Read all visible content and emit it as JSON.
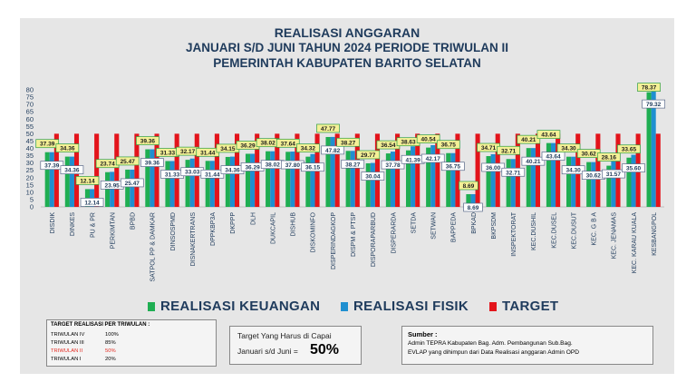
{
  "header": {
    "line1": "REALISASI ANGGARAN",
    "line2": "JANUARI S/D JUNI TAHUN 2024 PERIODE TRIWULAN II",
    "line3": "PEMERINTAH KABUPATEN BARITO SELATAN"
  },
  "legend": {
    "keuangan": "REALISASI KEUANGAN",
    "fisik": "REALISASI FISIK",
    "target": "TARGET"
  },
  "colors": {
    "keuangan": "#1fae52",
    "fisik": "#1f8fd0",
    "target": "#e3141b",
    "label_green_bg": "#f4f096",
    "label_green_border": "#2f9e44",
    "label_blue_bg": "#ffffff",
    "label_blue_border": "#5a6a8a",
    "highlight": "#e32b22"
  },
  "target_table": {
    "title": "TARGET REALISASI PER TRIWULAN :",
    "rows": [
      {
        "label": "TRIWULAN IV",
        "value": "100%"
      },
      {
        "label": "TRIWULAN III",
        "value": "85%"
      },
      {
        "label": "TRIWULAN II",
        "value": "50%"
      },
      {
        "label": "TRIWULAN I",
        "value": "20%"
      }
    ]
  },
  "target_note": {
    "line1": "Target Yang Harus di Capai",
    "line2": "Januari s/d Juni =",
    "value": "50%"
  },
  "source": {
    "title": "Sumber :",
    "line1": "Admin TEPRA Kabupaten Bag. Adm. Pembangunan Sub.Bag.",
    "line2": "EVLAP yang dihimpun dari Data Realisasi anggaran Admin OPD"
  },
  "chart_data": {
    "type": "bar",
    "categories": [
      "DISDIK",
      "DINKES",
      "PU & PR",
      "PERKIMTAN",
      "BPBD",
      "SATPOL PP & DAMKAR",
      "DINSOSPMD",
      "DISNAKERTRANS",
      "DPPKBP3A",
      "DKPPP",
      "DLH",
      "DUKCAPIL",
      "DISHUB",
      "DISKOMINFO",
      "DISPERINDAGKOP",
      "DISPM & PTSP",
      "DISPORAPARBUD",
      "DISPERARDA",
      "SETDA",
      "SETWAN",
      "BAPPEDA",
      "BPKAD",
      "BKPSDM",
      "INSPEKTORAT",
      "KEC.DUSHIL",
      "KEC.DUSEL",
      "KEC.DUSUT",
      "KEC. G B A",
      "KEC. JENAMAS",
      "KEC. KARAU KUALA",
      "KESBANGPOL"
    ],
    "series": [
      {
        "name": "REALISASI KEUANGAN",
        "values": [
          37.39,
          34.36,
          12.14,
          23.74,
          25.47,
          39.36,
          31.33,
          32.17,
          31.44,
          34.15,
          36.29,
          38.02,
          37.64,
          34.32,
          47.77,
          38.27,
          29.77,
          36.54,
          38.63,
          40.54,
          36.75,
          8.69,
          34.71,
          32.71,
          40.21,
          43.64,
          34.3,
          30.62,
          28.16,
          33.65,
          78.37
        ]
      },
      {
        "name": "REALISASI FISIK",
        "values": [
          37.39,
          34.36,
          12.14,
          23.95,
          25.47,
          39.36,
          31.33,
          33.03,
          31.44,
          34.36,
          36.29,
          38.02,
          37.8,
          36.15,
          47.82,
          38.27,
          30.04,
          37.78,
          41.39,
          42.17,
          36.75,
          8.69,
          36.0,
          32.71,
          40.21,
          43.64,
          34.3,
          30.62,
          31.57,
          35.6,
          79.32
        ]
      },
      {
        "name": "TARGET",
        "values": [
          50,
          50,
          50,
          50,
          50,
          50,
          50,
          50,
          50,
          50,
          50,
          50,
          50,
          50,
          50,
          50,
          50,
          50,
          50,
          50,
          50,
          50,
          50,
          50,
          50,
          50,
          50,
          50,
          50,
          50,
          50
        ]
      }
    ],
    "ylim": [
      0,
      80
    ],
    "yticks": [
      "0",
      "5",
      "10",
      "15",
      "20",
      "25",
      "30",
      "35",
      "40",
      "45",
      "50",
      "55",
      "60",
      "65",
      "70",
      "75",
      "80"
    ],
    "labels_keuangan": [
      "37.39",
      "34.36",
      "12.14",
      "23.74",
      "25.47",
      "39.36",
      "31.33",
      "32.17",
      "31.44",
      "34.15",
      "36.29",
      "38.02",
      "37.64",
      "34.32",
      "47.77",
      "38.27",
      "29.77",
      "36.54",
      "38.63",
      "40.54",
      "36.75",
      "8.69",
      "34.71",
      "32.71",
      "40.21",
      "43.64",
      "34.30",
      "30.62",
      "28.16",
      "33.65",
      "78.37"
    ],
    "labels_fisik": [
      "37.39",
      "34.36",
      "12.14",
      "23.95",
      "25.47",
      "39.36",
      "31.33",
      "33.03",
      "31.44",
      "34.36",
      "36.29",
      "38.02",
      "37.80",
      "36.15",
      "47.82",
      "38.27",
      "30.04",
      "37.78",
      "41.39",
      "42.17",
      "36.75",
      "8.69",
      "36.00",
      "32.71",
      "40.21",
      "43.64",
      "34.30",
      "30.62",
      "31.57",
      "35.60",
      "79.32"
    ],
    "title": "REALISASI ANGGARAN JANUARI S/D JUNI TAHUN 2024 PERIODE TRIWULAN II",
    "xlabel": "",
    "ylabel": "",
    "grid": false,
    "legend_position": "bottom"
  }
}
